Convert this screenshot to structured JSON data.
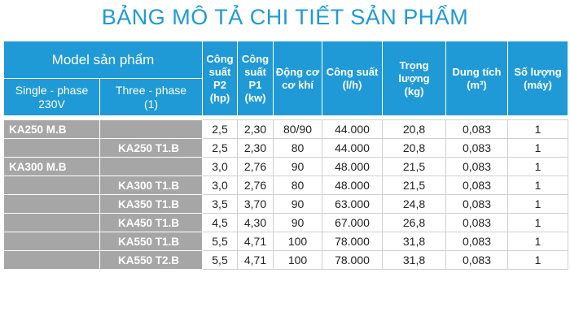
{
  "title": "BẢNG MÔ TẢ CHI TIẾT SẢN PHẨM",
  "header": {
    "model": "Model sản phẩm",
    "single_phase": [
      "Single - phase",
      "230V"
    ],
    "three_phase": [
      "Three - phase",
      "(1)"
    ],
    "p2": [
      "Công",
      "suất",
      "P2",
      "(hp)"
    ],
    "p1": [
      "Công",
      "suất",
      "P1",
      "(kw)"
    ],
    "motor": [
      "Động cơ",
      "cơ khí"
    ],
    "flow": [
      "Công suất",
      "(l/h)"
    ],
    "weight": [
      "Trọng",
      "lượng",
      "(kg)"
    ],
    "volume": [
      "Dung tích",
      "(m³)"
    ],
    "qty": [
      "Số lượng",
      "(máy)"
    ]
  },
  "rows": [
    {
      "single": "KA250 M.B",
      "three": "",
      "p2": "2,5",
      "p1": "2,30",
      "motor": "80/90",
      "flow": "44.000",
      "weight": "20,8",
      "volume": "0,083",
      "qty": "1"
    },
    {
      "single": "",
      "three": "KA250 T1.B",
      "p2": "2,5",
      "p1": "2,30",
      "motor": "80",
      "flow": "44.000",
      "weight": "20,8",
      "volume": "0,083",
      "qty": "1"
    },
    {
      "single": "KA300 M.B",
      "three": "",
      "p2": "3,0",
      "p1": "2,76",
      "motor": "90",
      "flow": "48.000",
      "weight": "21,5",
      "volume": "0,083",
      "qty": "1"
    },
    {
      "single": "",
      "three": "KA300 T1.B",
      "p2": "3,0",
      "p1": "2,76",
      "motor": "80",
      "flow": "48.000",
      "weight": "21,5",
      "volume": "0,083",
      "qty": "1"
    },
    {
      "single": "",
      "three": "KA350 T1.B",
      "p2": "3,5",
      "p1": "3,70",
      "motor": "90",
      "flow": "63.000",
      "weight": "24,8",
      "volume": "0,083",
      "qty": "1"
    },
    {
      "single": "",
      "three": "KA450 T1.B",
      "p2": "4,5",
      "p1": "4,30",
      "motor": "90",
      "flow": "67.000",
      "weight": "26,8",
      "volume": "0,083",
      "qty": "1"
    },
    {
      "single": "",
      "three": "KA550 T1.B",
      "p2": "5,5",
      "p1": "4,71",
      "motor": "100",
      "flow": "78.000",
      "weight": "31,8",
      "volume": "0,083",
      "qty": "1"
    },
    {
      "single": "",
      "three": "KA550 T2.B",
      "p2": "5,5",
      "p1": "4,71",
      "motor": "100",
      "flow": "78.000",
      "weight": "31,8",
      "volume": "0,083",
      "qty": "1"
    }
  ]
}
